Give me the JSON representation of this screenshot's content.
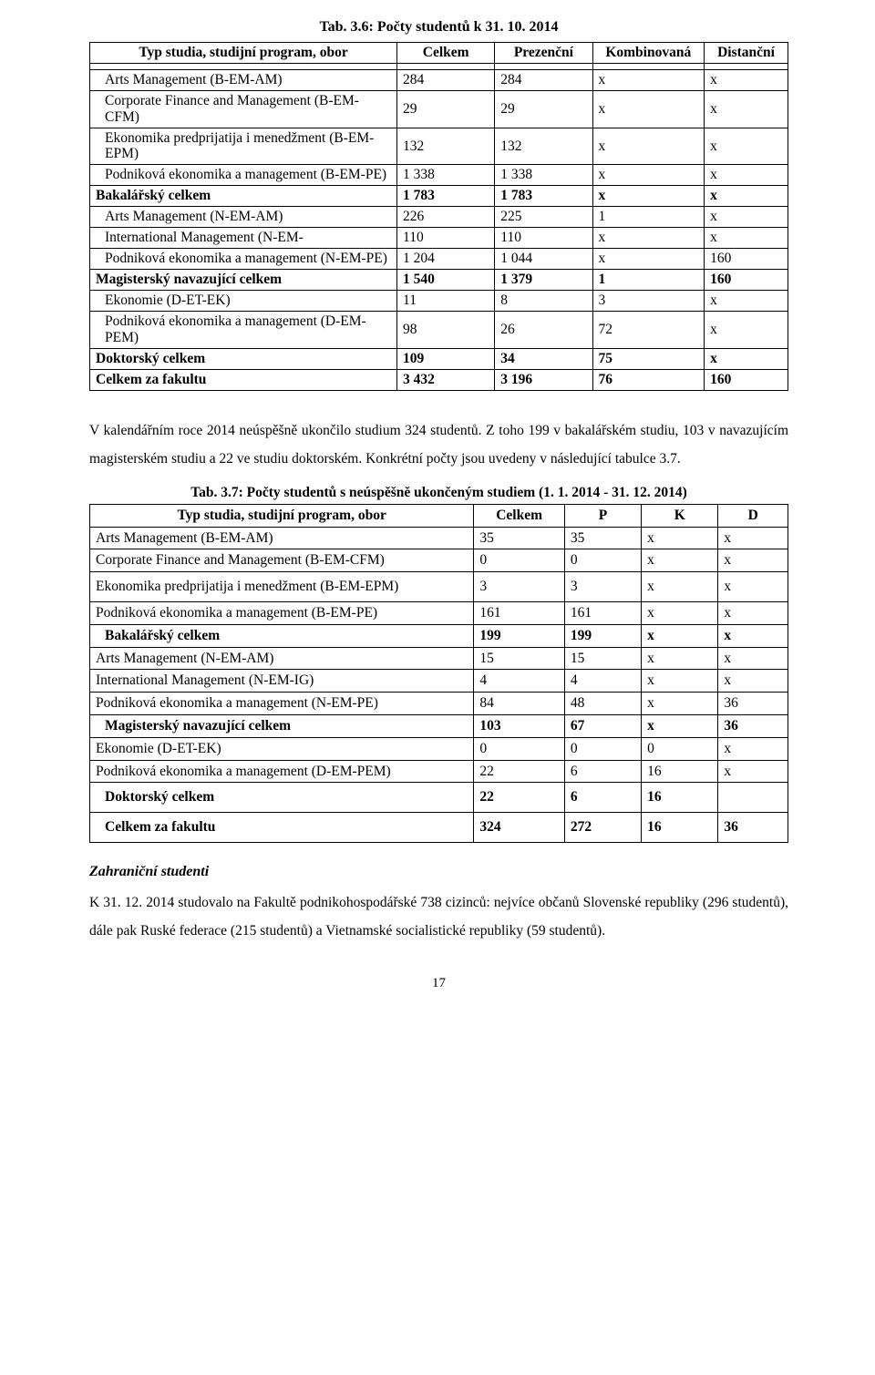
{
  "title1": "Tab. 3.6:  Počty studentů k 31. 10. 2014",
  "t1": {
    "headers": [
      "Typ studia, studijní program, obor",
      "Celkem",
      "Prezenční",
      "Kombinovaná",
      "Distanční"
    ],
    "rows": [
      {
        "label": "Arts Management (B-EM-AM)",
        "c": "284",
        "p": "284",
        "k": "x",
        "d": "x",
        "indent": true
      },
      {
        "label": "Corporate Finance and Management  (B-EM-CFM)",
        "c": "29",
        "p": "29",
        "k": "x",
        "d": "x",
        "indent": true
      },
      {
        "label": "Ekonomika predprijatija i menedžment (B-EM-EPM)",
        "c": "132",
        "p": "132",
        "k": "x",
        "d": "x",
        "indent": true
      },
      {
        "label": "Podniková ekonomika a management (B-EM-PE)",
        "c": "1 338",
        "p": "1 338",
        "k": "x",
        "d": "x",
        "indent": true
      },
      {
        "label": "Bakalářský celkem",
        "c": "1 783",
        "p": "1 783",
        "k": "x",
        "d": "x",
        "bold": true
      },
      {
        "label": "Arts Management (N-EM-AM)",
        "c": "226",
        "p": "225",
        "k": "1",
        "d": "x",
        "indent": true
      },
      {
        "label": "International Management (N-EM-",
        "c": "110",
        "p": "110",
        "k": "x",
        "d": "x",
        "indent": true
      },
      {
        "label": "Podniková ekonomika a management (N-EM-PE)",
        "c": "1 204",
        "p": "1 044",
        "k": "x",
        "d": "160",
        "indent": true
      },
      {
        "label": "Magisterský navazující celkem",
        "c": "1 540",
        "p": "1 379",
        "k": "1",
        "d": "160",
        "bold": true
      },
      {
        "label": "Ekonomie (D-ET-EK)",
        "c": "11",
        "p": "8",
        "k": "3",
        "d": "x",
        "indent": true
      },
      {
        "label": "Podniková ekonomika a management (D-EM-PEM)",
        "c": "98",
        "p": "26",
        "k": "72",
        "d": "x",
        "indent": true
      },
      {
        "label": "Doktorský celkem",
        "c": "109",
        "p": "34",
        "k": "75",
        "d": "x",
        "bold": true
      },
      {
        "label": "Celkem za fakultu",
        "c": "3 432",
        "p": "3 196",
        "k": "76",
        "d": "160",
        "bold": true
      }
    ]
  },
  "para": "V kalendářním roce 2014 neúspěšně ukončilo studium 324 studentů. Z toho 199 v bakalářském  studiu, 103 v navazujícím magisterském studiu a 22 ve studiu doktorském. Konkrétní počty jsou uvedeny v následující tabulce 3.7.",
  "title2": "Tab. 3.7:  Počty studentů s neúspěšně ukončeným studiem (1. 1. 2014 - 31. 12. 2014)",
  "t2": {
    "headers": [
      "Typ studia, studijní program, obor",
      "Celkem",
      "P",
      "K",
      "D"
    ],
    "rows": [
      {
        "label": "Arts Management (B-EM-AM)",
        "c": "35",
        "p": "35",
        "k": "x",
        "d": "x"
      },
      {
        "label": "Corporate Finance and Management (B-EM-CFM)",
        "c": "0",
        "p": "0",
        "k": "x",
        "d": "x"
      },
      {
        "label": "Ekonomika predprijatija i menedžment (B-EM-EPM)",
        "c": "3",
        "p": "3",
        "k": "x",
        "d": "x",
        "pad": true
      },
      {
        "label": "Podniková ekonomika a management (B-EM-PE)",
        "c": "161",
        "p": "161",
        "k": "x",
        "d": "x"
      },
      {
        "label": "Bakalářský celkem",
        "c": "199",
        "p": "199",
        "k": "x",
        "d": "x",
        "bold": true,
        "indent": true
      },
      {
        "label": "Arts Management (N-EM-AM)",
        "c": "15",
        "p": "15",
        "k": "x",
        "d": "x"
      },
      {
        "label": "International Management (N-EM-IG)",
        "c": "4",
        "p": "4",
        "k": "x",
        "d": "x"
      },
      {
        "label": "Podniková ekonomika a management (N-EM-PE)",
        "c": "84",
        "p": "48",
        "k": "x",
        "d": "36"
      },
      {
        "label": "Magisterský navazující celkem",
        "c": "103",
        "p": "67",
        "k": "x",
        "d": "36",
        "bold": true,
        "indent": true
      },
      {
        "label": "Ekonomie (D-ET-EK)",
        "c": "0",
        "p": "0",
        "k": "0",
        "d": "x"
      },
      {
        "label": "Podniková ekonomika a management (D-EM-PEM)",
        "c": "22",
        "p": "6",
        "k": "16",
        "d": "x"
      },
      {
        "label": "Doktorský celkem",
        "c": "22",
        "p": "6",
        "k": "16",
        "d": "",
        "bold": true,
        "indent": true,
        "pad": true
      },
      {
        "label": "Celkem za fakultu",
        "c": "324",
        "p": "272",
        "k": "16",
        "d": "36",
        "bold": true,
        "indent": true,
        "pad": true
      }
    ]
  },
  "sub": "Zahraniční studenti",
  "para2": "K 31. 12. 2014 studovalo na Fakultě podnikohospodářské 738 cizinců: nejvíce občanů Slovenské republiky (296 studentů), dále pak Ruské federace (215 studentů) a Vietnamské socialistické republiky (59 studentů).",
  "page": "17"
}
